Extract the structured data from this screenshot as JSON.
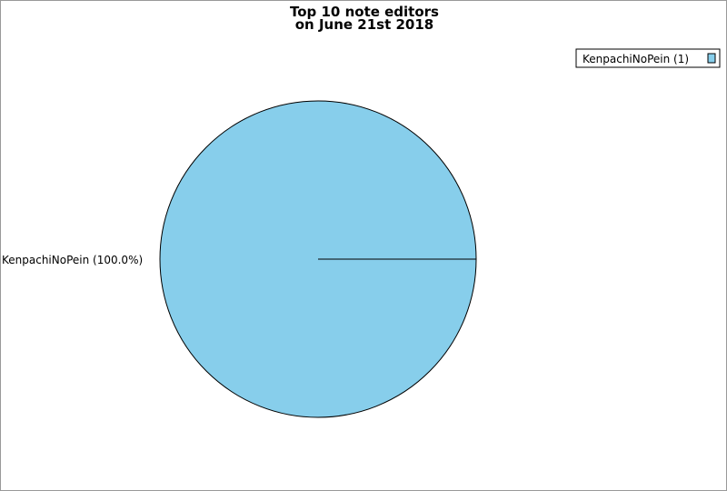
{
  "chart_data": {
    "type": "pie",
    "title": "Top 10 note editors",
    "subtitle": "on June 21st 2018",
    "slices": [
      {
        "label": "KenpachiNoPein",
        "value": 1,
        "percent_label": "KenpachiNoPein (100.0%)",
        "legend_label": "KenpachiNoPein (1)",
        "color": "#87ceeb"
      }
    ],
    "legend_placement": "top-right"
  }
}
